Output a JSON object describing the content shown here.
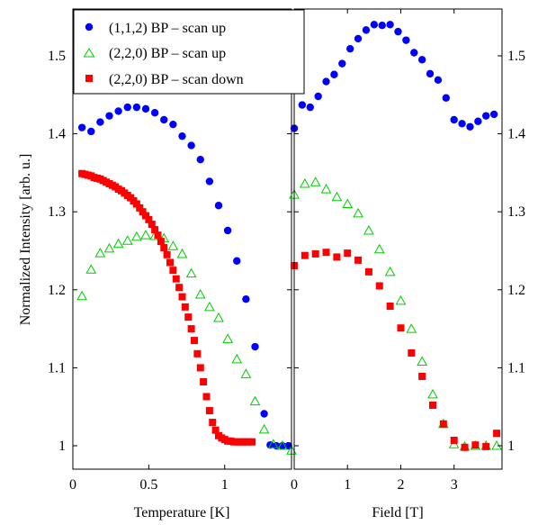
{
  "chart_data": [
    {
      "type": "scatter",
      "xlabel": "Temperature [K]",
      "ylabel": "Normalized Intensity [arb. u.]",
      "xlim": [
        0,
        1.44
      ],
      "ylim": [
        0.97,
        1.56
      ],
      "xticks": [
        0,
        0.5,
        1
      ],
      "xtick_labels": [
        "0",
        "0.5",
        "1"
      ],
      "yticks": [
        1,
        1.1,
        1.2,
        1.3,
        1.4,
        1.5
      ],
      "ytick_labels": [
        "1",
        "1.1",
        "1.2",
        "1.3",
        "1.4",
        "1.5"
      ],
      "y_tick_side": "left",
      "legend_position": "top-left",
      "series": [
        {
          "name": "(1,1,2) BP – scan up",
          "marker": "circle",
          "color": "#0000ff",
          "points": [
            [
              0.06,
              1.408
            ],
            [
              0.12,
              1.403
            ],
            [
              0.18,
              1.415
            ],
            [
              0.24,
              1.423
            ],
            [
              0.3,
              1.429
            ],
            [
              0.36,
              1.434
            ],
            [
              0.42,
              1.434
            ],
            [
              0.48,
              1.432
            ],
            [
              0.54,
              1.427
            ],
            [
              0.6,
              1.418
            ],
            [
              0.66,
              1.412
            ],
            [
              0.72,
              1.397
            ],
            [
              0.78,
              1.385
            ],
            [
              0.84,
              1.367
            ],
            [
              0.9,
              1.339
            ],
            [
              0.96,
              1.308
            ],
            [
              1.02,
              1.276
            ],
            [
              1.08,
              1.237
            ],
            [
              1.14,
              1.188
            ],
            [
              1.2,
              1.127
            ],
            [
              1.26,
              1.041
            ],
            [
              1.3,
              1.001
            ],
            [
              1.34,
              1.0
            ],
            [
              1.38,
              1.0
            ],
            [
              1.42,
              1.0
            ]
          ]
        },
        {
          "name": "(2,2,0) BP – scan up",
          "marker": "triangle",
          "color": "#00cc00",
          "points": [
            [
              0.06,
              1.192
            ],
            [
              0.12,
              1.226
            ],
            [
              0.18,
              1.247
            ],
            [
              0.24,
              1.253
            ],
            [
              0.3,
              1.259
            ],
            [
              0.36,
              1.263
            ],
            [
              0.42,
              1.268
            ],
            [
              0.48,
              1.27
            ],
            [
              0.54,
              1.269
            ],
            [
              0.6,
              1.266
            ],
            [
              0.66,
              1.256
            ],
            [
              0.72,
              1.246
            ],
            [
              0.78,
              1.221
            ],
            [
              0.84,
              1.194
            ],
            [
              0.9,
              1.178
            ],
            [
              0.96,
              1.164
            ],
            [
              1.02,
              1.137
            ],
            [
              1.08,
              1.111
            ],
            [
              1.14,
              1.092
            ],
            [
              1.2,
              1.057
            ],
            [
              1.26,
              1.021
            ],
            [
              1.32,
              1.002
            ],
            [
              1.38,
              1.0
            ],
            [
              1.44,
              0.994
            ]
          ]
        },
        {
          "name": "(2,2,0) BP – scan down",
          "marker": "square",
          "color": "#ff0000",
          "points": [
            [
              0.06,
              1.349
            ],
            [
              0.08,
              1.348
            ],
            [
              0.1,
              1.347
            ],
            [
              0.12,
              1.346
            ],
            [
              0.14,
              1.344
            ],
            [
              0.16,
              1.343
            ],
            [
              0.18,
              1.342
            ],
            [
              0.2,
              1.34
            ],
            [
              0.22,
              1.338
            ],
            [
              0.24,
              1.336
            ],
            [
              0.26,
              1.334
            ],
            [
              0.28,
              1.332
            ],
            [
              0.3,
              1.329
            ],
            [
              0.32,
              1.327
            ],
            [
              0.34,
              1.324
            ],
            [
              0.36,
              1.321
            ],
            [
              0.38,
              1.318
            ],
            [
              0.4,
              1.314
            ],
            [
              0.42,
              1.31
            ],
            [
              0.44,
              1.305
            ],
            [
              0.46,
              1.3
            ],
            [
              0.48,
              1.295
            ],
            [
              0.5,
              1.29
            ],
            [
              0.52,
              1.284
            ],
            [
              0.54,
              1.277
            ],
            [
              0.56,
              1.27
            ],
            [
              0.58,
              1.262
            ],
            [
              0.6,
              1.254
            ],
            [
              0.62,
              1.245
            ],
            [
              0.64,
              1.235
            ],
            [
              0.66,
              1.225
            ],
            [
              0.68,
              1.214
            ],
            [
              0.7,
              1.203
            ],
            [
              0.72,
              1.191
            ],
            [
              0.74,
              1.178
            ],
            [
              0.76,
              1.165
            ],
            [
              0.78,
              1.15
            ],
            [
              0.8,
              1.135
            ],
            [
              0.82,
              1.118
            ],
            [
              0.84,
              1.1
            ],
            [
              0.86,
              1.082
            ],
            [
              0.88,
              1.063
            ],
            [
              0.9,
              1.045
            ],
            [
              0.92,
              1.03
            ],
            [
              0.94,
              1.02
            ],
            [
              0.96,
              1.013
            ],
            [
              0.98,
              1.01
            ],
            [
              1.0,
              1.008
            ],
            [
              1.02,
              1.006
            ],
            [
              1.04,
              1.006
            ],
            [
              1.06,
              1.005
            ],
            [
              1.08,
              1.005
            ],
            [
              1.1,
              1.005
            ],
            [
              1.12,
              1.005
            ],
            [
              1.14,
              1.005
            ],
            [
              1.16,
              1.005
            ],
            [
              1.18,
              1.005
            ]
          ]
        }
      ]
    },
    {
      "type": "scatter",
      "xlabel": "Field [T]",
      "ylabel": "",
      "xlim": [
        0,
        3.9
      ],
      "ylim": [
        0.97,
        1.56
      ],
      "xticks": [
        0,
        1,
        2,
        3
      ],
      "xtick_labels": [
        "0",
        "1",
        "2",
        "3"
      ],
      "yticks": [
        1,
        1.1,
        1.2,
        1.3,
        1.4,
        1.5
      ],
      "ytick_labels": [
        "1",
        "1.1",
        "1.2",
        "1.3",
        "1.4",
        "1.5"
      ],
      "y_tick_side": "right",
      "series": [
        {
          "name": "(1,1,2) BP – scan up",
          "marker": "circle",
          "color": "#0000ff",
          "points": [
            [
              0.0,
              1.407
            ],
            [
              0.15,
              1.437
            ],
            [
              0.3,
              1.434
            ],
            [
              0.45,
              1.448
            ],
            [
              0.6,
              1.467
            ],
            [
              0.75,
              1.476
            ],
            [
              0.9,
              1.49
            ],
            [
              1.05,
              1.509
            ],
            [
              1.2,
              1.522
            ],
            [
              1.35,
              1.533
            ],
            [
              1.5,
              1.54
            ],
            [
              1.65,
              1.539
            ],
            [
              1.8,
              1.54
            ],
            [
              1.95,
              1.531
            ],
            [
              2.1,
              1.52
            ],
            [
              2.25,
              1.504
            ],
            [
              2.4,
              1.495
            ],
            [
              2.55,
              1.477
            ],
            [
              2.7,
              1.469
            ],
            [
              2.85,
              1.446
            ],
            [
              3.0,
              1.418
            ],
            [
              3.15,
              1.413
            ],
            [
              3.3,
              1.409
            ],
            [
              3.45,
              1.416
            ],
            [
              3.6,
              1.423
            ],
            [
              3.75,
              1.425
            ]
          ]
        },
        {
          "name": "(2,2,0) BP – scan up",
          "marker": "triangle",
          "color": "#00cc00",
          "points": [
            [
              0.0,
              1.322
            ],
            [
              0.2,
              1.336
            ],
            [
              0.4,
              1.338
            ],
            [
              0.6,
              1.329
            ],
            [
              0.8,
              1.319
            ],
            [
              1.0,
              1.31
            ],
            [
              1.2,
              1.298
            ],
            [
              1.4,
              1.276
            ],
            [
              1.6,
              1.252
            ],
            [
              1.8,
              1.223
            ],
            [
              2.0,
              1.186
            ],
            [
              2.2,
              1.15
            ],
            [
              2.4,
              1.108
            ],
            [
              2.6,
              1.066
            ],
            [
              2.8,
              1.028
            ],
            [
              3.0,
              1.002
            ],
            [
              3.2,
              0.999
            ],
            [
              3.4,
              1.0
            ],
            [
              3.6,
              1.0
            ],
            [
              3.8,
              1.0
            ]
          ]
        },
        {
          "name": "(2,2,0) BP – scan down",
          "marker": "square",
          "color": "#ff0000",
          "points": [
            [
              0.0,
              1.231
            ],
            [
              0.2,
              1.244
            ],
            [
              0.4,
              1.246
            ],
            [
              0.6,
              1.248
            ],
            [
              0.8,
              1.242
            ],
            [
              1.0,
              1.247
            ],
            [
              1.2,
              1.238
            ],
            [
              1.4,
              1.223
            ],
            [
              1.6,
              1.205
            ],
            [
              1.8,
              1.179
            ],
            [
              2.0,
              1.151
            ],
            [
              2.2,
              1.119
            ],
            [
              2.4,
              1.089
            ],
            [
              2.6,
              1.052
            ],
            [
              2.8,
              1.028
            ],
            [
              3.0,
              1.007
            ],
            [
              3.2,
              0.998
            ],
            [
              3.4,
              1.001
            ],
            [
              3.6,
              0.999
            ],
            [
              3.8,
              1.016
            ]
          ]
        }
      ]
    }
  ]
}
